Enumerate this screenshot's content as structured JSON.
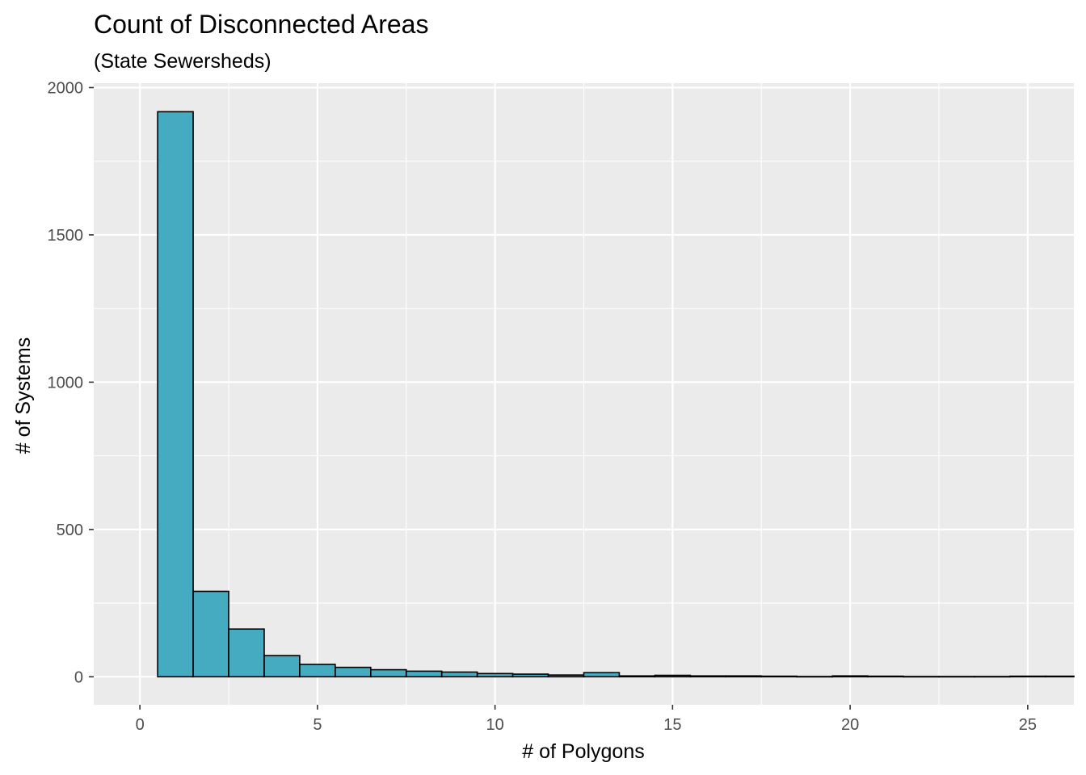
{
  "chart_data": {
    "type": "bar",
    "title": "Count of Disconnected Areas",
    "subtitle": "(State Sewersheds)",
    "xlabel": "# of Polygons",
    "ylabel": "# of Systems",
    "x": [
      1,
      2,
      3,
      4,
      5,
      6,
      7,
      8,
      9,
      10,
      11,
      12,
      13,
      14,
      15,
      16,
      17,
      18,
      19,
      20,
      21,
      22,
      23,
      24,
      25,
      26
    ],
    "values": [
      1918,
      290,
      162,
      72,
      42,
      32,
      24,
      19,
      16,
      11,
      9,
      6,
      14,
      3,
      5,
      3,
      3,
      2,
      1,
      3,
      2,
      1,
      1,
      1,
      2,
      2
    ],
    "xlim": [
      -1.3,
      26.3
    ],
    "ylim": [
      -95,
      2015
    ],
    "x_ticks": [
      "0",
      "5",
      "10",
      "15",
      "20",
      "25"
    ],
    "y_ticks": [
      "0",
      "500",
      "1000",
      "1500",
      "2000"
    ],
    "bar_color": "#45ABC1",
    "panel_color": "#EBEBEB",
    "grid": true,
    "legend": "none"
  }
}
